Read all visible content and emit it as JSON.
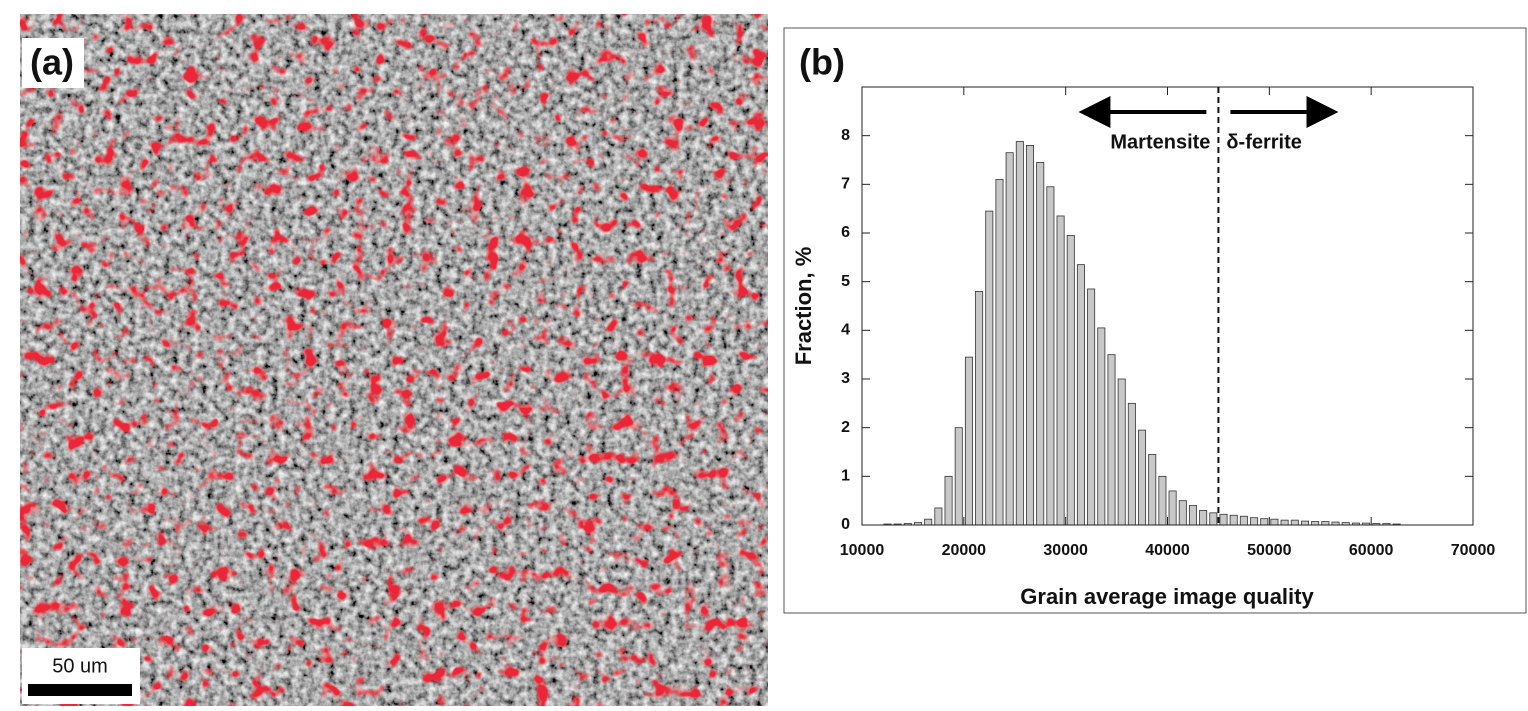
{
  "panel_a": {
    "label": "(a)",
    "scale_bar": "50 um"
  },
  "chart_data": {
    "type": "histogram",
    "label": "(b)",
    "x_label": "Grain average image quality",
    "y_label": "Fraction, %",
    "bins": [
      12000,
      13000,
      14000,
      15000,
      16000,
      17000,
      18000,
      19000,
      20000,
      21000,
      22000,
      23000,
      24000,
      25000,
      26000,
      27000,
      28000,
      29000,
      30000,
      31000,
      32000,
      33000,
      34000,
      35000,
      36000,
      37000,
      38000,
      39000,
      40000,
      41000,
      42000,
      43000,
      44000,
      45000,
      46000,
      47000,
      48000,
      49000,
      50000,
      51000,
      52000,
      53000,
      54000,
      55000,
      56000,
      57000,
      58000,
      59000,
      60000,
      61000,
      62000,
      63000
    ],
    "values": [
      0.02,
      0.02,
      0.03,
      0.05,
      0.12,
      0.35,
      1.0,
      2.0,
      3.45,
      4.8,
      6.45,
      7.1,
      7.65,
      7.88,
      7.8,
      7.45,
      6.95,
      6.35,
      5.95,
      5.35,
      4.85,
      4.05,
      3.5,
      3.0,
      2.5,
      1.95,
      1.45,
      1.0,
      0.7,
      0.5,
      0.4,
      0.3,
      0.25,
      0.22,
      0.2,
      0.18,
      0.15,
      0.13,
      0.12,
      0.1,
      0.1,
      0.08,
      0.07,
      0.07,
      0.06,
      0.05,
      0.04,
      0.04,
      0.03,
      0.03,
      0.02
    ],
    "color": "#c8c8c8",
    "xlim": [
      10000,
      70000
    ],
    "xticks": [
      10000,
      20000,
      30000,
      40000,
      50000,
      60000,
      70000
    ],
    "ylim": [
      0,
      9
    ],
    "yticks": [
      0,
      1,
      2,
      3,
      4,
      5,
      6,
      7,
      8
    ],
    "divider_x": 45000,
    "annotations": {
      "left": "Martensite",
      "right": "δ-ferrite"
    }
  }
}
